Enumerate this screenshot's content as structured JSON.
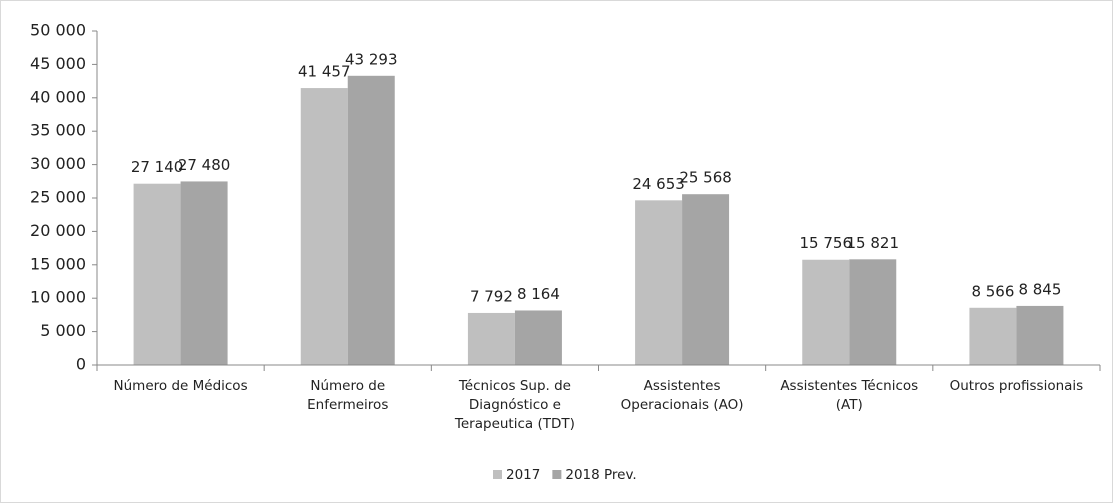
{
  "chart_data": {
    "type": "bar",
    "categories": [
      "Número de Médicos",
      "Número de\nEnfermeiros",
      "Técnicos Sup. de\nDiagnóstico e\nTerapeutica (TDT)",
      "Assistentes\nOperacionais (AO)",
      "Assistentes Técnicos\n(AT)",
      "Outros profissionais"
    ],
    "series": [
      {
        "name": "2017",
        "color": "#bfbfbf",
        "values": [
          27140,
          41457,
          7792,
          24653,
          15756,
          8566
        ],
        "value_labels": [
          "27 140",
          "41 457",
          "7 792",
          "24 653",
          "15 756",
          "8 566"
        ]
      },
      {
        "name": "2018 Prev.",
        "color": "#a5a5a5",
        "values": [
          27480,
          43293,
          8164,
          25568,
          15821,
          8845
        ],
        "value_labels": [
          "27 480",
          "43 293",
          "8 164",
          "25 568",
          "15 821",
          "8 845"
        ]
      }
    ],
    "ylim": [
      0,
      50000
    ],
    "yticks": [
      0,
      {
        "value": 5000,
        "label": "5 000"
      },
      {
        "value": 10000,
        "label": "10 000"
      },
      {
        "value": 15000,
        "label": "15 000"
      },
      {
        "value": 20000,
        "label": "20 000"
      },
      {
        "value": 25000,
        "label": "25 000"
      },
      {
        "value": 30000,
        "label": "30 000"
      },
      {
        "value": 35000,
        "label": "35 000"
      },
      {
        "value": 40000,
        "label": "40 000"
      },
      {
        "value": 45000,
        "label": "45 000"
      },
      {
        "value": 50000,
        "label": "50 000"
      }
    ],
    "grid": false,
    "legend": "bottom"
  }
}
